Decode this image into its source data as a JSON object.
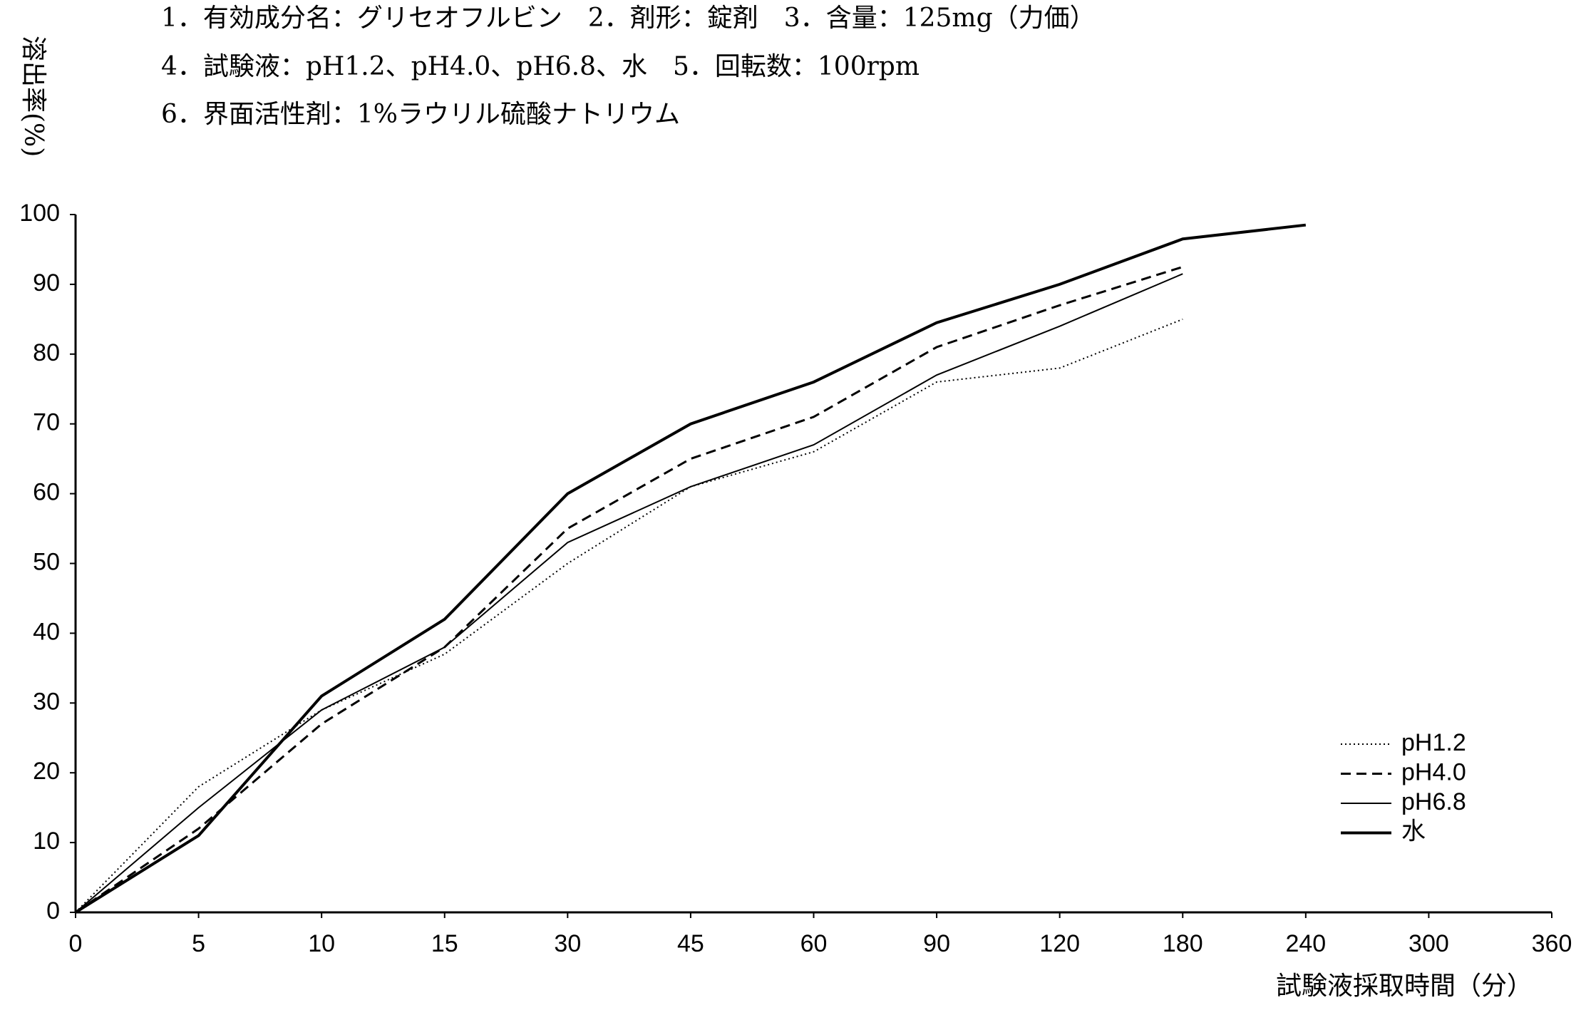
{
  "chart_data": {
    "type": "line",
    "notes": [
      "1．有効成分名：グリセオフルビン　2．剤形：錠剤　3．含量：125mg（力価）",
      "4．試験液：pH1.2、pH4.0、pH6.8、水　5．回転数：100rpm",
      "6．界面活性剤：1%ラウリル硫酸ナトリウム"
    ],
    "y_label": "溶出率(%)",
    "x_label": "試験液採取時間（分）",
    "categories": [
      "0",
      "5",
      "10",
      "15",
      "30",
      "45",
      "60",
      "90",
      "120",
      "180",
      "240",
      "300",
      "360"
    ],
    "ylim": [
      0,
      100
    ],
    "yticks": [
      0,
      10,
      20,
      30,
      40,
      50,
      60,
      70,
      80,
      90,
      100
    ],
    "legend": "lower right",
    "series": [
      {
        "name": "pH1.2",
        "color": "#000000",
        "style": "dotted",
        "values": [
          0,
          18,
          29,
          37,
          50,
          61,
          66,
          76,
          78,
          85,
          null,
          null,
          null
        ]
      },
      {
        "name": "pH4.0",
        "color": "#000000",
        "style": "dashed",
        "values": [
          0,
          12,
          27,
          38,
          55,
          65,
          71,
          81,
          87,
          92.5,
          null,
          null,
          null
        ]
      },
      {
        "name": "pH6.8",
        "color": "#000000",
        "style": "solid",
        "values": [
          0,
          15,
          29,
          38,
          53,
          61,
          67,
          77,
          84,
          91.5,
          null,
          null,
          null
        ]
      },
      {
        "name": "水",
        "color": "#000000",
        "style": "bold",
        "values": [
          0,
          11,
          31,
          42,
          60,
          70,
          76,
          84.5,
          90,
          96.5,
          98.5,
          null,
          null
        ]
      }
    ]
  }
}
